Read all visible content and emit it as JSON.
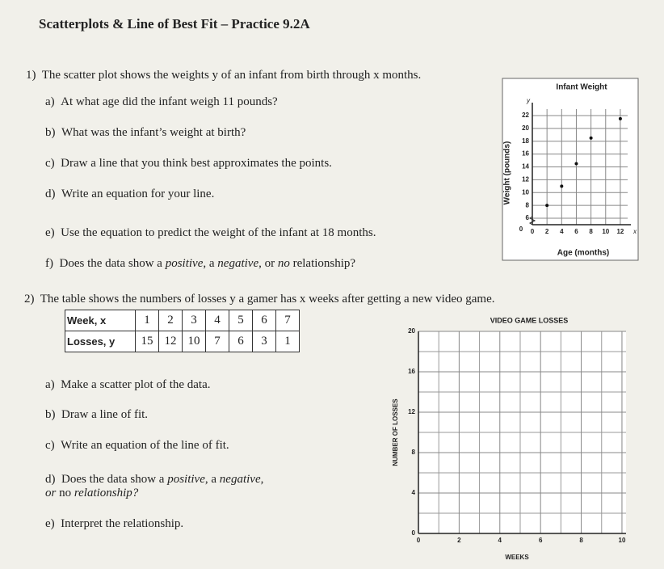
{
  "header": {
    "title": "Scatterplots & Line of Best Fit – Practice 9.2A"
  },
  "problem1": {
    "number": "1)",
    "prompt": "The scatter plot shows the weights y of an infant from birth through x months.",
    "questions": [
      {
        "label": "a)",
        "text": "At what age did the infant weigh 11 pounds?"
      },
      {
        "label": "b)",
        "text": "What was the infant’s weight at birth?"
      },
      {
        "label": "c)",
        "text": "Draw a line that you think best approximates the points."
      },
      {
        "label": "d)",
        "text": "Write an equation for your line."
      },
      {
        "label": "e)",
        "text": "Use the equation to predict the weight of the infant at 18 months."
      },
      {
        "label": "f)",
        "parts": [
          "Does the data show a ",
          "positive",
          ", a ",
          "negative",
          ", or ",
          "no",
          " relationship?"
        ]
      }
    ]
  },
  "problem2": {
    "number": "2)",
    "prompt": "The table shows the numbers of losses y a gamer has x weeks after getting a new video game.",
    "table": {
      "rows": [
        [
          "Week, x",
          "1",
          "2",
          "3",
          "4",
          "5",
          "6",
          "7"
        ],
        [
          "Losses, y",
          "15",
          "12",
          "10",
          "7",
          "6",
          "3",
          "1"
        ]
      ]
    },
    "questions": [
      {
        "label": "a)",
        "text": "Make a scatter plot of the data."
      },
      {
        "label": "b)",
        "text": "Draw a line of fit."
      },
      {
        "label": "c)",
        "text": "Write an equation of the line of fit."
      },
      {
        "label": "d)",
        "parts": [
          "Does the data show a ",
          "positive",
          ", a ",
          "negative",
          ",",
          "or ",
          "no",
          " relationship?"
        ]
      },
      {
        "label": "e)",
        "text": "Interpret the relationship."
      }
    ]
  },
  "chart_data": [
    {
      "type": "scatter",
      "title": "Infant Weight",
      "xlabel": "Age (months)",
      "ylabel": "Weight (pounds)",
      "x_letter": "x",
      "y_letter": "y",
      "origin_label": "0",
      "x": [
        2,
        4,
        6,
        8,
        12
      ],
      "values": [
        8,
        11,
        14.5,
        18.5,
        21.5
      ],
      "color": "#111111",
      "xlim": [
        0,
        13
      ],
      "ylim": [
        5,
        23
      ],
      "xticks": [
        0,
        2,
        4,
        6,
        8,
        10,
        12
      ],
      "yticks": [
        6,
        8,
        10,
        12,
        14,
        16,
        18,
        20,
        22
      ],
      "grid": true,
      "axis_break": true
    },
    {
      "type": "scatter",
      "title": "VIDEO GAME LOSSES",
      "xlabel": "WEEKS",
      "ylabel": "NUMBER OF LOSSES",
      "xlim": [
        0,
        10.2
      ],
      "ylim": [
        0,
        20
      ],
      "xticks": [
        0,
        2,
        4,
        6,
        8,
        10
      ],
      "yticks": [
        0,
        4,
        8,
        12,
        16,
        20
      ],
      "grid": true
    }
  ]
}
